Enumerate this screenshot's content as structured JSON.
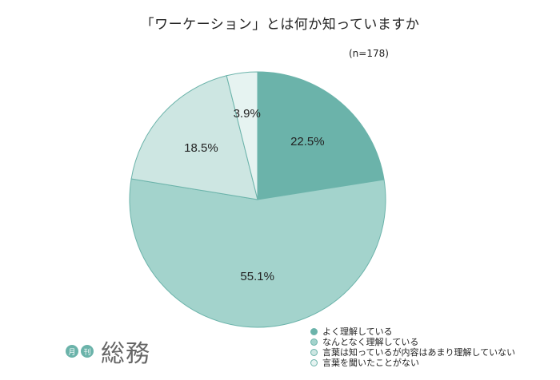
{
  "chart_data": {
    "type": "pie",
    "title": "「ワーケーション」とは何か知っていますか",
    "sample_size": "(n=178)",
    "slices": [
      {
        "label": "よく理解している",
        "value": 22.5,
        "value_label": "22.5%",
        "color": "#6bb3aa"
      },
      {
        "label": "なんとなく理解している",
        "value": 55.1,
        "value_label": "55.1%",
        "color": "#a3d3cc"
      },
      {
        "label": "言葉は知っているが内容はあまり理解していない",
        "value": 18.5,
        "value_label": "18.5%",
        "color": "#cde6e2"
      },
      {
        "label": "言葉を聞いたことがない",
        "value": 3.9,
        "value_label": "3.9%",
        "color": "#e6f3f1"
      }
    ],
    "legend_position": "bottom-right"
  },
  "logo": {
    "badge_1": "月",
    "badge_2": "刊",
    "name": "総務"
  }
}
